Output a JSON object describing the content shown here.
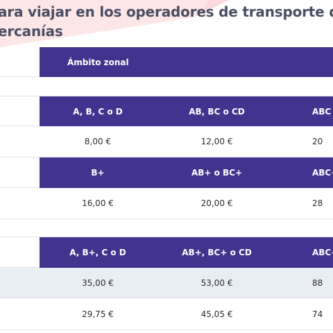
{
  "title": {
    "line1": "ara viajar en los operadores de transporte de Me",
    "line2": "ercanías"
  },
  "table": {
    "zonal_header": "Ámbito zonal",
    "sections": [
      {
        "headers": [
          "A, B, C o D",
          "AB, BC o CD",
          "ABC"
        ],
        "rows": [
          [
            "8,00 €",
            "12,00 €",
            "20"
          ]
        ]
      },
      {
        "headers": [
          "B+",
          "AB+ o BC+",
          "ABC+"
        ],
        "rows": [
          [
            "16,00 €",
            "20,00 €",
            "28"
          ]
        ]
      },
      {
        "headers": [
          "A, B+, C o D",
          "AB+, BC+ o CD",
          "ABC+"
        ],
        "rows": [
          [
            "35,00 €",
            "53,00  €",
            "88"
          ],
          [
            "29,75 €",
            "45,05 €",
            "74"
          ]
        ]
      }
    ]
  },
  "colors": {
    "header_bg": "#42338e",
    "title_text": "#4a4e63",
    "alt_row_bg": "#e9eef4",
    "accent_pink": "#fde8ea"
  }
}
